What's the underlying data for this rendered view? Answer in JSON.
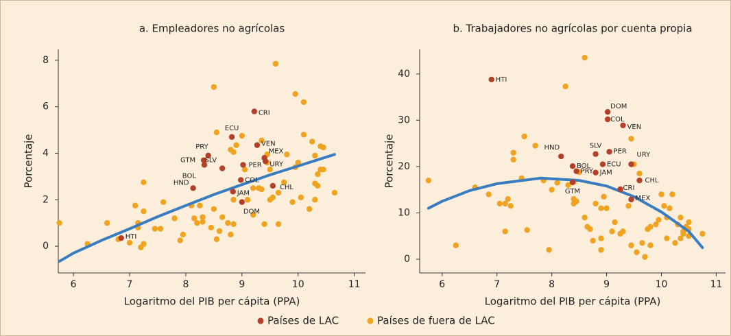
{
  "chart_data": [
    {
      "type": "scatter",
      "title": "a. Empleadores no agrícolas",
      "xlabel": "Logaritmo del PIB per cápita (PPA)",
      "ylabel": "Porcentaje",
      "xlim": [
        5.73,
        11.2
      ],
      "ylim": [
        -1.15,
        8.47
      ],
      "xticks": [
        6,
        7,
        8,
        9,
        10,
        11
      ],
      "yticks": [
        0,
        2,
        4,
        6,
        8
      ],
      "series": [
        {
          "name": "Países de LAC",
          "color": "#b5402a",
          "labels": [
            "HTI",
            "HND",
            "BOL",
            "GTM",
            "PRY",
            "SLV",
            "ECU",
            "CRI",
            "VEN",
            "MEX",
            "URY",
            "PER",
            "COL",
            "JAM",
            "CHL",
            "DOM"
          ],
          "x": [
            6.85,
            8.13,
            8.33,
            8.32,
            8.4,
            8.65,
            8.82,
            9.22,
            9.27,
            9.4,
            9.42,
            9.02,
            8.98,
            8.84,
            9.55,
            9.0
          ],
          "values": [
            0.35,
            2.5,
            3.5,
            3.7,
            3.9,
            3.35,
            4.7,
            5.8,
            4.35,
            3.8,
            3.65,
            3.5,
            2.85,
            2.35,
            2.6,
            1.9
          ]
        },
        {
          "name": "Países de fuera de LAC",
          "color": "#f0a320",
          "x": [
            5.75,
            6.25,
            6.6,
            6.8,
            7.0,
            7.1,
            7.15,
            7.15,
            7.2,
            7.25,
            7.25,
            7.25,
            7.45,
            7.55,
            7.6,
            7.8,
            7.9,
            7.95,
            8.1,
            8.15,
            8.2,
            8.25,
            8.3,
            8.3,
            8.45,
            8.5,
            8.55,
            8.6,
            8.65,
            8.75,
            8.8,
            8.85,
            8.85,
            8.5,
            8.55,
            8.8,
            8.9,
            9.0,
            8.85,
            9.05,
            9.2,
            9.3,
            9.35,
            9.4,
            9.35,
            9.45,
            9.45,
            9.5,
            9.55,
            9.6,
            9.65,
            9.65,
            9.75,
            9.8,
            9.9,
            9.95,
            9.95,
            10.0,
            10.05,
            10.1,
            10.1,
            10.2,
            10.25,
            10.3,
            10.3,
            10.3,
            10.35,
            10.35,
            10.4,
            10.4,
            10.45,
            10.45,
            10.65,
            9.2,
            9.5,
            9.1
          ],
          "values": [
            1.0,
            0.1,
            1.0,
            0.3,
            0.15,
            1.75,
            0.8,
            1.0,
            -0.05,
            0.1,
            2.75,
            1.5,
            0.75,
            0.75,
            1.9,
            1.2,
            0.25,
            0.5,
            1.75,
            1.2,
            1.0,
            1.75,
            1.05,
            1.25,
            0.8,
            1.6,
            0.3,
            0.65,
            1.25,
            1.0,
            0.5,
            0.95,
            2.0,
            6.85,
            4.9,
            4.15,
            4.35,
            4.75,
            4.05,
            3.3,
            1.35,
            2.5,
            2.45,
            0.95,
            4.55,
            3.95,
            3.6,
            3.3,
            2.1,
            7.85,
            2.3,
            0.95,
            2.75,
            3.95,
            1.9,
            3.4,
            6.55,
            3.6,
            2.1,
            4.8,
            6.2,
            1.6,
            4.5,
            3.9,
            2.7,
            2.0,
            3.1,
            2.6,
            4.3,
            3.3,
            3.3,
            4.25,
            2.3,
            2.5,
            2.0,
            2.0
          ]
        }
      ],
      "fit_line": {
        "color": "#3a7cc0",
        "x": [
          5.75,
          6,
          6.5,
          7,
          7.5,
          8,
          8.5,
          9,
          9.5,
          10,
          10.65
        ],
        "values": [
          -0.65,
          -0.3,
          0.25,
          0.75,
          1.27,
          1.75,
          2.22,
          2.65,
          3.07,
          3.45,
          3.95
        ]
      }
    },
    {
      "type": "scatter",
      "title": "b. Trabajadores no agrícolas por cuenta propia",
      "xlabel": "Logaritmo del PIB per cápita (PPA)",
      "ylabel": "Porcentaje",
      "xlim": [
        5.59,
        11.17
      ],
      "ylim": [
        -2.96,
        45.3
      ],
      "xticks": [
        6,
        7,
        8,
        9,
        10,
        11
      ],
      "yticks": [
        0,
        10,
        20,
        30,
        40
      ],
      "series": [
        {
          "name": "Países de LAC",
          "color": "#b5402a",
          "labels": [
            "HTI",
            "DOM",
            "COL",
            "VEN",
            "PER",
            "SLV",
            "HND",
            "BOL",
            "PRY",
            "ECU",
            "JAM",
            "URY",
            "CHL",
            "GTM",
            "CRI",
            "MEX"
          ],
          "x": [
            6.9,
            9.02,
            9.02,
            9.3,
            9.05,
            8.8,
            8.17,
            8.38,
            8.45,
            8.93,
            8.8,
            9.45,
            9.6,
            8.38,
            9.25,
            9.45
          ],
          "values": [
            38.8,
            31.8,
            30.2,
            28.9,
            23.2,
            22.7,
            22.2,
            20.1,
            19.0,
            20.5,
            18.7,
            20.5,
            17.0,
            16.6,
            15.1,
            12.9
          ]
        },
        {
          "name": "Países de fuera de LAC",
          "color": "#f0a320",
          "x": [
            5.75,
            6.25,
            6.6,
            6.85,
            7.05,
            7.15,
            7.15,
            7.2,
            7.25,
            7.3,
            7.3,
            7.45,
            7.5,
            7.55,
            7.7,
            7.85,
            7.95,
            8.0,
            8.1,
            8.25,
            8.3,
            8.4,
            8.4,
            8.4,
            8.45,
            8.5,
            8.6,
            8.6,
            8.65,
            8.7,
            8.75,
            8.8,
            8.9,
            8.9,
            8.9,
            8.95,
            9.0,
            9.1,
            9.25,
            9.3,
            9.4,
            9.45,
            9.5,
            9.45,
            9.55,
            9.6,
            9.65,
            9.7,
            9.75,
            9.8,
            9.8,
            9.9,
            9.95,
            10.0,
            10.05,
            10.1,
            10.1,
            10.2,
            10.25,
            10.3,
            10.35,
            10.35,
            10.4,
            10.4,
            10.45,
            10.5,
            10.5,
            10.5,
            10.75,
            10.15,
            9.15
          ],
          "values": [
            17,
            3,
            15.5,
            14,
            12,
            12,
            6,
            13,
            11.5,
            23,
            21.5,
            17.5,
            26.5,
            6.3,
            24.5,
            17,
            2,
            15,
            16.5,
            37.3,
            16,
            16.7,
            12,
            13,
            12.5,
            18.8,
            43.5,
            9,
            7,
            6.5,
            4,
            12,
            2,
            4.5,
            11,
            13.5,
            11,
            6,
            5.5,
            6,
            11.5,
            26,
            20.5,
            3,
            1.5,
            18.5,
            3.5,
            0.5,
            6.5,
            7,
            3,
            7.5,
            8.5,
            14,
            11.5,
            4.5,
            9,
            14,
            3.5,
            7.5,
            4.5,
            9,
            6,
            5.5,
            7,
            6.5,
            8,
            5,
            5.5,
            11,
            8
          ]
        }
      ],
      "fit_line": {
        "color": "#3a7cc0",
        "x": [
          5.75,
          6,
          6.5,
          7,
          7.8,
          8.5,
          9,
          9.5,
          10,
          10.5,
          10.75
        ],
        "values": [
          11,
          12.5,
          14.8,
          16.3,
          17.5,
          17,
          15.8,
          13.5,
          10.2,
          6,
          2.5
        ]
      }
    }
  ]
}
